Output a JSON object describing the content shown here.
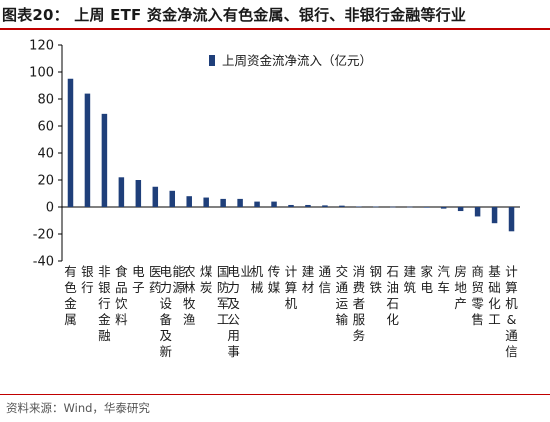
{
  "title": "图表20：  上周 ETF 资金净流入有色金属、银行、非银行金融等行业",
  "source": "资料来源：Wind，华泰研究",
  "colors": {
    "bar": "#1f3f7a",
    "accent": "#c00000",
    "axis": "#000000"
  },
  "chart_data": {
    "type": "bar",
    "categories": [
      "有色金属",
      "银行",
      "非银行金融",
      "食品饮料",
      "电子",
      "医药",
      "电力设备及新能源",
      "农林牧渔",
      "煤炭",
      "国防军工",
      "电力及公用事业",
      "机械",
      "传媒",
      "计算机",
      "建材",
      "通信",
      "交通运输",
      "消费者服务",
      "钢铁",
      "石油石化",
      "建筑",
      "家电",
      "汽车",
      "房地产",
      "商贸零售",
      "基础化工",
      "计算机&通信"
    ],
    "series": [
      {
        "name": "上周资金流净流入（亿元）",
        "values": [
          95,
          84,
          69,
          22,
          20,
          15,
          12,
          8,
          7,
          6,
          6,
          4,
          4,
          1.5,
          1.5,
          1.2,
          1,
          0.4,
          0.3,
          0.2,
          0.2,
          -0.5,
          -1.2,
          -3,
          -7,
          -12,
          -18
        ]
      }
    ],
    "ylim": [
      -40,
      120
    ],
    "yticks": [
      -40,
      -20,
      0,
      20,
      40,
      60,
      80,
      100,
      120
    ],
    "legend_position": "top-center",
    "grid": false
  }
}
